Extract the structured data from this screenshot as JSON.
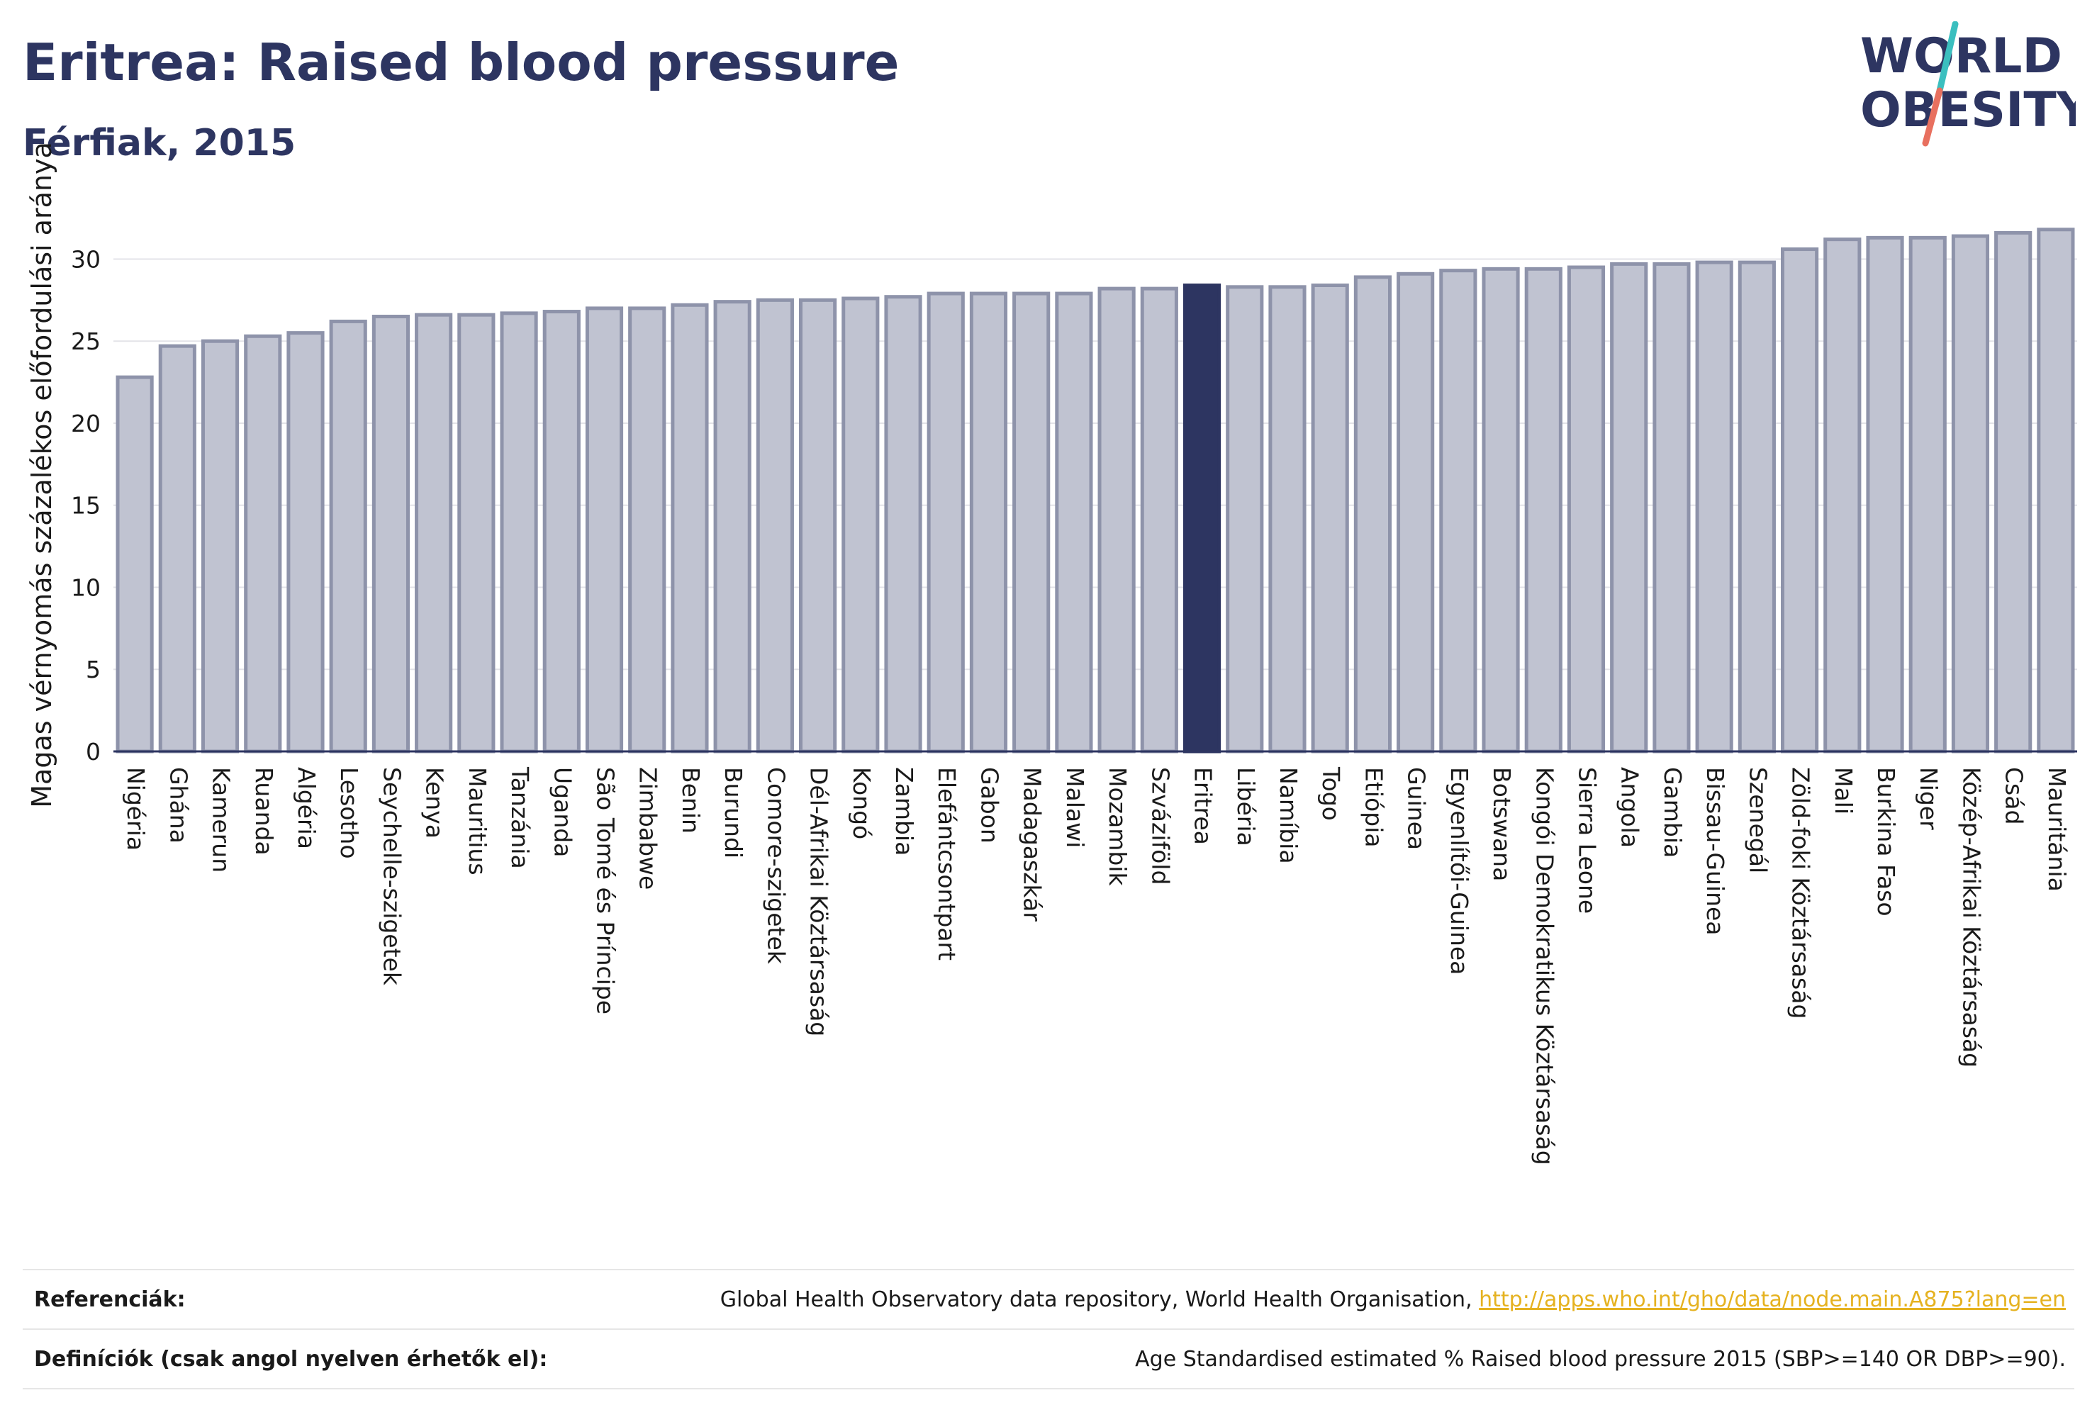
{
  "title": "Eritrea: Raised blood pressure",
  "subtitle": "Férfiak, 2015",
  "logo": {
    "line1": "WORLD",
    "line2": "OBESITY"
  },
  "colors": {
    "highlight": "#2d3561",
    "bar": "#c0c3d1",
    "bar_border": "#8e93aa",
    "logo_slash_top": "#3bbfbf",
    "logo_slash_bottom": "#e8705f",
    "link": "#e5b220"
  },
  "chart_data": {
    "type": "bar",
    "ylabel": "Magas vérnyomás százalékos előfordulási aránya",
    "ylim": [
      0,
      33
    ],
    "yticks": [
      0,
      5,
      10,
      15,
      20,
      25,
      30
    ],
    "grid": true,
    "highlight": "Eritrea",
    "categories": [
      "Nigéria",
      "Ghána",
      "Kamerun",
      "Ruanda",
      "Algéria",
      "Lesotho",
      "Seychelle-szigetek",
      "Kenya",
      "Mauritius",
      "Tanzánia",
      "Uganda",
      "São Tomé és Príncipe",
      "Zimbabwe",
      "Benin",
      "Burundi",
      "Comore-szigetek",
      "Dél-Afrikai Köztársaság",
      "Kongó",
      "Zambia",
      "Elefántcsontpart",
      "Gabon",
      "Madagaszkár",
      "Malawi",
      "Mozambik",
      "Szváziföld",
      "Eritrea",
      "Libéria",
      "Namíbia",
      "Togo",
      "Etiópia",
      "Guinea",
      "Egyenlítői-Guinea",
      "Botswana",
      "Kongói Demokratikus Köztársaság",
      "Sierra Leone",
      "Angola",
      "Gambia",
      "Bissau-Guinea",
      "Szenegál",
      "Zöld-foki Köztársaság",
      "Mali",
      "Burkina Faso",
      "Niger",
      "Közép-Afrikai Köztársaság",
      "Csád",
      "Mauritánia"
    ],
    "values": [
      22.8,
      24.7,
      25.0,
      25.3,
      25.5,
      26.2,
      26.5,
      26.6,
      26.6,
      26.7,
      26.8,
      27.0,
      27.0,
      27.2,
      27.4,
      27.5,
      27.5,
      27.6,
      27.7,
      27.9,
      27.9,
      27.9,
      27.9,
      28.2,
      28.2,
      28.4,
      28.3,
      28.3,
      28.4,
      28.9,
      29.1,
      29.3,
      29.4,
      29.4,
      29.5,
      29.7,
      29.7,
      29.8,
      29.8,
      30.6,
      31.2,
      31.3,
      31.3,
      31.4,
      31.6,
      31.8
    ]
  },
  "references": {
    "label": "Referenciák:",
    "text": "Global Health Observatory data repository, World Health Organisation, ",
    "link": "http://apps.who.int/gho/data/node.main.A875?lang=en"
  },
  "definitions": {
    "label": "Definíciók (csak angol nyelven érhetők el):",
    "text": "Age Standardised estimated % Raised blood pressure 2015 (SBP>=140 OR DBP>=90)."
  }
}
